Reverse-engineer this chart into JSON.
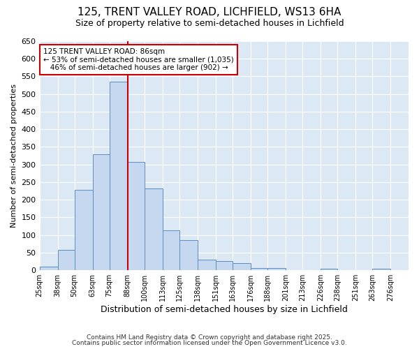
{
  "title_line1": "125, TRENT VALLEY ROAD, LICHFIELD, WS13 6HA",
  "title_line2": "Size of property relative to semi-detached houses in Lichfield",
  "xlabel": "Distribution of semi-detached houses by size in Lichfield",
  "ylabel": "Number of semi-detached properties",
  "bin_labels": [
    "25sqm",
    "38sqm",
    "50sqm",
    "63sqm",
    "75sqm",
    "88sqm",
    "100sqm",
    "113sqm",
    "125sqm",
    "138sqm",
    "151sqm",
    "163sqm",
    "176sqm",
    "188sqm",
    "201sqm",
    "213sqm",
    "226sqm",
    "238sqm",
    "251sqm",
    "263sqm",
    "276sqm"
  ],
  "bin_edges": [
    25,
    38,
    50,
    63,
    75,
    88,
    100,
    113,
    125,
    138,
    151,
    163,
    176,
    188,
    201,
    213,
    226,
    238,
    251,
    263,
    276
  ],
  "values": [
    10,
    58,
    228,
    330,
    535,
    307,
    232,
    113,
    85,
    31,
    26,
    21,
    7,
    6,
    0,
    0,
    5,
    0,
    0,
    5,
    0
  ],
  "property_size": 86,
  "property_line_x": 88,
  "bar_color": "#c5d8f0",
  "bar_edge_color": "#5a8fc0",
  "vline_color": "#cc0000",
  "annotation_line1": "125 TRENT VALLEY ROAD: 86sqm",
  "annotation_line2": "← 53% of semi-detached houses are smaller (1,035)",
  "annotation_line3": "   46% of semi-detached houses are larger (902) →",
  "annotation_box_color": "#ffffff",
  "annotation_box_edge": "#cc0000",
  "ylim": [
    0,
    650
  ],
  "plot_bg_color": "#dce9f5",
  "figure_bg_color": "#ffffff",
  "grid_color": "#ffffff",
  "footnote1": "Contains HM Land Registry data © Crown copyright and database right 2025.",
  "footnote2": "Contains public sector information licensed under the Open Government Licence v3.0."
}
